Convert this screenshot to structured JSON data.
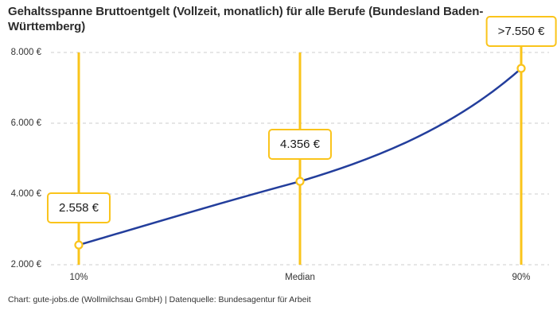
{
  "header": {
    "title": "Gehaltsspanne Bruttoentgelt (Vollzeit, monatlich) für alle Berufe (Bundesland Baden-Württemberg)"
  },
  "footer": {
    "credit": "Chart: gute-jobs.de (Wollmilchsau GmbH) | Datenquelle: Bundesagentur für Arbeit"
  },
  "chart_data": {
    "type": "line",
    "title": "Gehaltsspanne Bruttoentgelt (Vollzeit, monatlich) für alle Berufe (Bundesland Baden-Württemberg)",
    "categories": [
      "10%",
      "Median",
      "90%"
    ],
    "values": [
      2558,
      4356,
      7550
    ],
    "point_labels": [
      "2.558 €",
      "4.356 €",
      ">7.550 €"
    ],
    "y_ticks": [
      2000,
      4000,
      6000,
      8000
    ],
    "y_tick_labels": [
      "2.000 €",
      "4.000 €",
      "6.000 €",
      "8.000 €"
    ],
    "ylim": [
      2000,
      8000
    ],
    "xlabel": "",
    "ylabel": "",
    "grid": "horizontal-dashed",
    "legend": "none",
    "marker_style": "open-circle",
    "guide_lines": "vertical-accent-at-each-point",
    "colors": {
      "line": "#233e9c",
      "accent": "#fac41b",
      "marker_fill": "#ffffff",
      "grid": "#cccccc",
      "title_text": "#2d2d2d",
      "axis_text": "#333333",
      "label_text": "#1a1a1a",
      "background": "#ffffff"
    }
  }
}
